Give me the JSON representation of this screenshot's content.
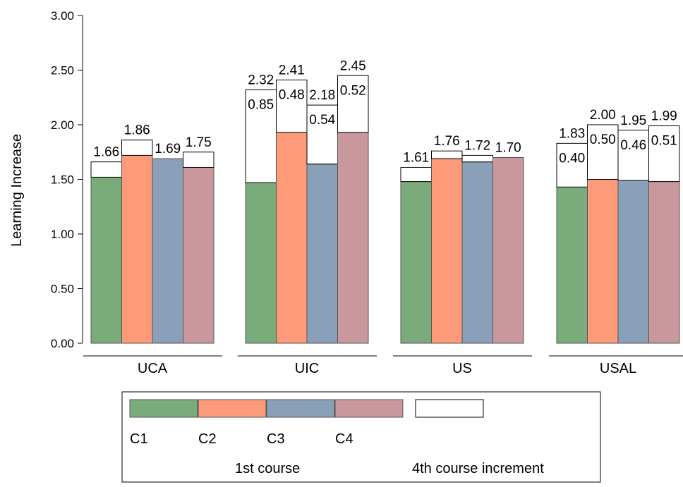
{
  "chart_data": {
    "type": "bar",
    "ylabel": "Learning Increase",
    "ylim": [
      0,
      3
    ],
    "yticks": [
      "0.00",
      "0.50",
      "1.00",
      "1.50",
      "2.00",
      "2.50",
      "3.00"
    ],
    "categories": [
      "UCA",
      "UIC",
      "US",
      "USAL"
    ],
    "course_labels": [
      "C1",
      "C2",
      "C3",
      "C4"
    ],
    "colors": {
      "C1": "#7aab7a",
      "C2": "#fc9a79",
      "C3": "#8aa0b8",
      "C4": "#c8989c",
      "increment": "#ffffff"
    },
    "series": [
      {
        "name": "1st course",
        "stack": "base",
        "values": [
          [
            1.52,
            1.72,
            1.69,
            1.61
          ],
          [
            1.47,
            1.93,
            1.64,
            1.93
          ],
          [
            1.48,
            1.69,
            1.66,
            1.7
          ],
          [
            1.43,
            1.5,
            1.49,
            1.48
          ]
        ]
      },
      {
        "name": "4th course increment",
        "stack": "top",
        "values": [
          [
            0.14,
            0.14,
            0.0,
            0.14
          ],
          [
            0.85,
            0.48,
            0.54,
            0.52
          ],
          [
            0.13,
            0.07,
            0.06,
            0.0
          ],
          [
            0.4,
            0.5,
            0.46,
            0.51
          ]
        ]
      }
    ],
    "total_labels": [
      [
        "1.66",
        "1.86",
        "1.69",
        "1.75"
      ],
      [
        "2.32",
        "2.41",
        "2.18",
        "2.45"
      ],
      [
        "1.61",
        "1.76",
        "1.72",
        "1.70"
      ],
      [
        "1.83",
        "2.00",
        "1.95",
        "1.99"
      ]
    ],
    "increment_labels": [
      [
        "",
        "",
        "",
        ""
      ],
      [
        "0.85",
        "0.48",
        "0.54",
        "0.52"
      ],
      [
        "",
        "",
        "",
        ""
      ],
      [
        "0.40",
        "0.50",
        "0.46",
        "0.51"
      ]
    ],
    "legend": {
      "entries": [
        "C1",
        "C2",
        "C3",
        "C4"
      ],
      "group_labels": [
        "1st course",
        "4th course increment"
      ],
      "placement": "bottom"
    }
  }
}
